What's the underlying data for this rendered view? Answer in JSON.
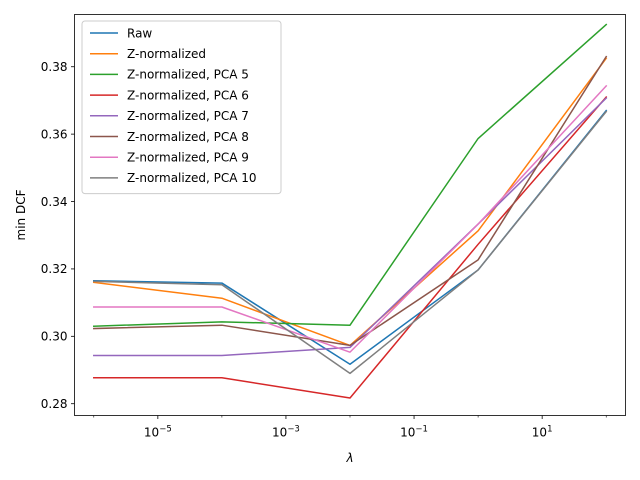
{
  "chart_data": {
    "type": "line",
    "title": "",
    "xlabel": "λ",
    "ylabel": "min DCF",
    "xscale": "log",
    "x": [
      1e-06,
      0.0001,
      0.01,
      1,
      100
    ],
    "xlim": [
      5e-07,
      200
    ],
    "ylim": [
      0.2765,
      0.3955
    ],
    "xticks": [
      {
        "value": 1e-05,
        "base": "10",
        "exp": "−5"
      },
      {
        "value": 0.001,
        "base": "10",
        "exp": "−3"
      },
      {
        "value": 0.1,
        "base": "10",
        "exp": "−1"
      },
      {
        "value": 10,
        "base": "10",
        "exp": "1"
      }
    ],
    "yticks": [
      0.28,
      0.3,
      0.32,
      0.34,
      0.36,
      0.38
    ],
    "ytick_labels": [
      "0.28",
      "0.30",
      "0.32",
      "0.34",
      "0.36",
      "0.38"
    ],
    "grid": false,
    "legend_position": "upper-left",
    "series": [
      {
        "name": "Raw",
        "color": "#1f77b4",
        "values": [
          0.3165,
          0.3158,
          0.2917,
          0.3197,
          0.367
        ]
      },
      {
        "name": "Z-normalized",
        "color": "#ff7f0e",
        "values": [
          0.316,
          0.3113,
          0.2973,
          0.3313,
          0.3825
        ]
      },
      {
        "name": "Z-normalized, PCA 5",
        "color": "#2ca02c",
        "values": [
          0.303,
          0.3043,
          0.3033,
          0.3587,
          0.3925
        ]
      },
      {
        "name": "Z-normalized, PCA 6",
        "color": "#d62728",
        "values": [
          0.2877,
          0.2877,
          0.2817,
          0.3273,
          0.371
        ]
      },
      {
        "name": "Z-normalized, PCA 7",
        "color": "#9467bd",
        "values": [
          0.2943,
          0.2943,
          0.2967,
          0.3333,
          0.3707
        ]
      },
      {
        "name": "Z-normalized, PCA 8",
        "color": "#8c564b",
        "values": [
          0.3023,
          0.3033,
          0.2973,
          0.3227,
          0.383
        ]
      },
      {
        "name": "Z-normalized, PCA 9",
        "color": "#e377c2",
        "values": [
          0.3087,
          0.3087,
          0.2953,
          0.3333,
          0.3743
        ]
      },
      {
        "name": "Z-normalized, PCA 10",
        "color": "#7f7f7f",
        "values": [
          0.3163,
          0.3153,
          0.289,
          0.3197,
          0.3667
        ]
      }
    ]
  }
}
